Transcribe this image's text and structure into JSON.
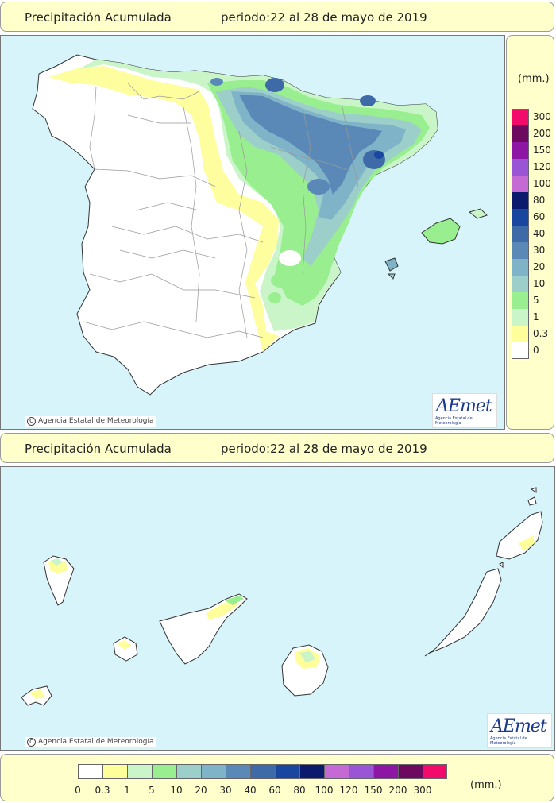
{
  "top_panel": {
    "title": "Precipitación Acumulada",
    "period": "periodo:22 al 28 de mayo de 2019",
    "credit": "Agencia Estatal de Meteorología",
    "region": "Península y Baleares"
  },
  "bottom_panel": {
    "title": "Precipitación Acumulada",
    "period": "periodo:22 al 28 de mayo de 2019",
    "credit": "Agencia Estatal de Meteorología",
    "region": "Canarias"
  },
  "logo": {
    "word": "AEmet",
    "sub": "Agencia Estatal de Meteorología"
  },
  "legend": {
    "unit": "(mm.)",
    "classes": [
      {
        "label": "0",
        "color": "#ffffff"
      },
      {
        "label": "0.3",
        "color": "#fefe9a"
      },
      {
        "label": "1",
        "color": "#caf5c9"
      },
      {
        "label": "5",
        "color": "#99ef8f"
      },
      {
        "label": "10",
        "color": "#9ccfc9"
      },
      {
        "label": "20",
        "color": "#7fb3c8"
      },
      {
        "label": "30",
        "color": "#5a89b8"
      },
      {
        "label": "40",
        "color": "#3f6aa8"
      },
      {
        "label": "60",
        "color": "#19479f"
      },
      {
        "label": "80",
        "color": "#0c1a6e"
      },
      {
        "label": "100",
        "color": "#c56ad5"
      },
      {
        "label": "120",
        "color": "#9955d5"
      },
      {
        "label": "150",
        "color": "#8e16a5"
      },
      {
        "label": "200",
        "color": "#6d0a60"
      },
      {
        "label": "300",
        "color": "#f30b6c"
      }
    ]
  }
}
